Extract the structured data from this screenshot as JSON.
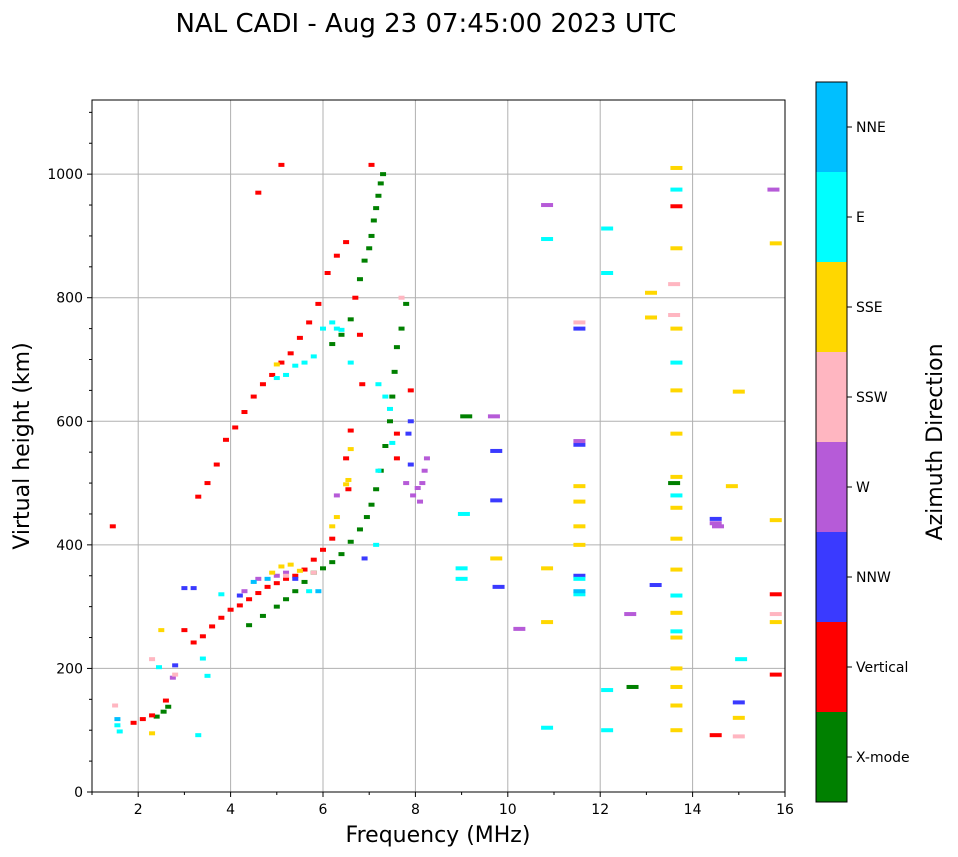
{
  "chart_data": {
    "type": "scatter",
    "title": "NAL CADI - Aug 23 07:45:00 2023 UTC",
    "xlabel": "Frequency (MHz)",
    "ylabel": "Virtual height (km)",
    "xlim": [
      1,
      16
    ],
    "ylim": [
      0,
      1120
    ],
    "x_ticks": [
      2,
      4,
      6,
      8,
      10,
      12,
      14,
      16
    ],
    "x_tick_labels": [
      "2",
      "4",
      "6",
      "8",
      "10",
      "12",
      "14",
      "16"
    ],
    "y_ticks": [
      0,
      200,
      400,
      600,
      800,
      1000
    ],
    "y_tick_labels": [
      "0",
      "200",
      "400",
      "600",
      "800",
      "1000"
    ],
    "grid": true,
    "colorbar": {
      "label": "Azimuth Direction",
      "categories": [
        "X-mode",
        "Vertical",
        "NNW",
        "W",
        "SSW",
        "SSE",
        "E",
        "NNE"
      ],
      "colors": [
        "#008000",
        "#ff0000",
        "#3a3aff",
        "#b65bd8",
        "#ffb6c1",
        "#ffd700",
        "#00ffff",
        "#00bfff"
      ]
    },
    "series": [
      {
        "name": "X-mode",
        "points": [
          [
            2.4,
            122
          ],
          [
            2.55,
            130
          ],
          [
            2.65,
            138
          ],
          [
            4.4,
            270
          ],
          [
            4.7,
            285
          ],
          [
            5.0,
            300
          ],
          [
            5.2,
            312
          ],
          [
            5.4,
            325
          ],
          [
            5.6,
            340
          ],
          [
            5.8,
            355
          ],
          [
            6.0,
            362
          ],
          [
            6.2,
            372
          ],
          [
            6.4,
            385
          ],
          [
            6.6,
            405
          ],
          [
            6.8,
            425
          ],
          [
            6.95,
            445
          ],
          [
            7.05,
            465
          ],
          [
            7.15,
            490
          ],
          [
            7.25,
            520
          ],
          [
            7.35,
            560
          ],
          [
            7.45,
            600
          ],
          [
            7.5,
            640
          ],
          [
            7.55,
            680
          ],
          [
            7.6,
            720
          ],
          [
            7.7,
            750
          ],
          [
            7.8,
            790
          ],
          [
            6.2,
            725
          ],
          [
            6.4,
            740
          ],
          [
            6.6,
            765
          ],
          [
            6.8,
            830
          ],
          [
            6.9,
            860
          ],
          [
            7.0,
            880
          ],
          [
            7.05,
            900
          ],
          [
            7.1,
            925
          ],
          [
            7.15,
            945
          ],
          [
            7.2,
            965
          ],
          [
            7.25,
            985
          ],
          [
            7.3,
            1000
          ],
          [
            9.1,
            608
          ],
          [
            12.7,
            170
          ],
          [
            13.6,
            500
          ]
        ]
      },
      {
        "name": "Vertical",
        "points": [
          [
            1.45,
            430
          ],
          [
            1.9,
            112
          ],
          [
            2.1,
            118
          ],
          [
            2.3,
            124
          ],
          [
            2.6,
            148
          ],
          [
            3.0,
            262
          ],
          [
            3.2,
            242
          ],
          [
            3.4,
            252
          ],
          [
            3.6,
            268
          ],
          [
            3.8,
            282
          ],
          [
            4.0,
            295
          ],
          [
            4.2,
            302
          ],
          [
            4.4,
            312
          ],
          [
            4.6,
            322
          ],
          [
            4.8,
            332
          ],
          [
            5.0,
            338
          ],
          [
            5.2,
            345
          ],
          [
            5.4,
            350
          ],
          [
            5.6,
            360
          ],
          [
            5.8,
            376
          ],
          [
            6.0,
            392
          ],
          [
            6.2,
            410
          ],
          [
            3.3,
            478
          ],
          [
            3.5,
            500
          ],
          [
            3.7,
            530
          ],
          [
            3.9,
            570
          ],
          [
            4.1,
            590
          ],
          [
            4.3,
            615
          ],
          [
            4.5,
            640
          ],
          [
            4.7,
            660
          ],
          [
            4.9,
            675
          ],
          [
            5.1,
            695
          ],
          [
            5.3,
            710
          ],
          [
            5.5,
            735
          ],
          [
            5.7,
            760
          ],
          [
            5.9,
            790
          ],
          [
            6.1,
            840
          ],
          [
            6.3,
            868
          ],
          [
            6.5,
            890
          ],
          [
            6.7,
            800
          ],
          [
            6.8,
            740
          ],
          [
            6.85,
            660
          ],
          [
            6.6,
            585
          ],
          [
            6.5,
            540
          ],
          [
            6.55,
            490
          ],
          [
            4.6,
            970
          ],
          [
            5.1,
            1015
          ],
          [
            7.05,
            1015
          ],
          [
            7.6,
            540
          ],
          [
            7.9,
            650
          ],
          [
            7.6,
            580
          ],
          [
            13.65,
            948
          ],
          [
            14.5,
            92
          ],
          [
            15.8,
            190
          ],
          [
            15.8,
            320
          ]
        ]
      },
      {
        "name": "NNW",
        "points": [
          [
            2.8,
            205
          ],
          [
            3.0,
            330
          ],
          [
            3.2,
            330
          ],
          [
            4.2,
            318
          ],
          [
            5.4,
            345
          ],
          [
            6.9,
            378
          ],
          [
            7.85,
            580
          ],
          [
            7.9,
            530
          ],
          [
            7.9,
            600
          ],
          [
            9.75,
            472
          ],
          [
            9.75,
            552
          ],
          [
            9.8,
            332
          ],
          [
            11.55,
            562
          ],
          [
            11.55,
            350
          ],
          [
            11.55,
            750
          ],
          [
            13.2,
            335
          ],
          [
            14.5,
            442
          ],
          [
            15.0,
            145
          ]
        ]
      },
      {
        "name": "W",
        "points": [
          [
            2.75,
            185
          ],
          [
            4.3,
            325
          ],
          [
            4.6,
            345
          ],
          [
            5.0,
            350
          ],
          [
            5.2,
            355
          ],
          [
            6.3,
            480
          ],
          [
            7.8,
            500
          ],
          [
            7.95,
            480
          ],
          [
            8.05,
            492
          ],
          [
            8.15,
            500
          ],
          [
            8.2,
            520
          ],
          [
            8.25,
            540
          ],
          [
            8.1,
            470
          ],
          [
            9.7,
            608
          ],
          [
            10.25,
            264
          ],
          [
            10.85,
            950
          ],
          [
            11.55,
            568
          ],
          [
            12.65,
            288
          ],
          [
            14.5,
            435
          ],
          [
            14.55,
            430
          ],
          [
            15.75,
            975
          ]
        ]
      },
      {
        "name": "SSW",
        "points": [
          [
            1.5,
            140
          ],
          [
            2.3,
            215
          ],
          [
            2.8,
            190
          ],
          [
            5.2,
            350
          ],
          [
            5.8,
            355
          ],
          [
            7.7,
            800
          ],
          [
            11.55,
            760
          ],
          [
            13.6,
            772
          ],
          [
            13.6,
            822
          ],
          [
            15.0,
            90
          ],
          [
            15.8,
            288
          ]
        ]
      },
      {
        "name": "SSE",
        "points": [
          [
            2.3,
            95
          ],
          [
            2.5,
            262
          ],
          [
            4.9,
            355
          ],
          [
            5.1,
            365
          ],
          [
            5.3,
            368
          ],
          [
            5.5,
            358
          ],
          [
            5.0,
            692
          ],
          [
            6.2,
            430
          ],
          [
            6.3,
            445
          ],
          [
            6.5,
            498
          ],
          [
            6.55,
            505
          ],
          [
            6.6,
            555
          ],
          [
            9.75,
            378
          ],
          [
            10.85,
            275
          ],
          [
            10.85,
            362
          ],
          [
            11.55,
            400
          ],
          [
            11.55,
            430
          ],
          [
            11.55,
            470
          ],
          [
            11.55,
            495
          ],
          [
            13.1,
            808
          ],
          [
            13.1,
            768
          ],
          [
            13.65,
            1010
          ],
          [
            13.65,
            880
          ],
          [
            13.65,
            750
          ],
          [
            13.65,
            650
          ],
          [
            13.65,
            580
          ],
          [
            13.65,
            510
          ],
          [
            13.65,
            460
          ],
          [
            13.65,
            410
          ],
          [
            13.65,
            360
          ],
          [
            13.65,
            290
          ],
          [
            13.65,
            250
          ],
          [
            13.65,
            200
          ],
          [
            13.65,
            170
          ],
          [
            13.65,
            140
          ],
          [
            13.65,
            100
          ],
          [
            14.85,
            495
          ],
          [
            15.0,
            648
          ],
          [
            15.0,
            120
          ],
          [
            15.8,
            888
          ],
          [
            15.8,
            440
          ],
          [
            15.8,
            275
          ]
        ]
      },
      {
        "name": "E",
        "points": [
          [
            1.55,
            108
          ],
          [
            1.6,
            98
          ],
          [
            2.45,
            202
          ],
          [
            3.4,
            216
          ],
          [
            3.5,
            188
          ],
          [
            3.8,
            320
          ],
          [
            3.3,
            92
          ],
          [
            5.0,
            670
          ],
          [
            5.2,
            675
          ],
          [
            5.4,
            690
          ],
          [
            5.6,
            695
          ],
          [
            5.8,
            705
          ],
          [
            6.0,
            750
          ],
          [
            6.2,
            760
          ],
          [
            6.4,
            748
          ],
          [
            5.7,
            325
          ],
          [
            6.3,
            750
          ],
          [
            6.6,
            695
          ],
          [
            7.2,
            660
          ],
          [
            7.35,
            640
          ],
          [
            7.45,
            620
          ],
          [
            7.5,
            565
          ],
          [
            7.2,
            520
          ],
          [
            7.15,
            400
          ],
          [
            9.0,
            362
          ],
          [
            9.0,
            345
          ],
          [
            9.05,
            450
          ],
          [
            10.85,
            104
          ],
          [
            10.85,
            895
          ],
          [
            11.55,
            320
          ],
          [
            11.55,
            345
          ],
          [
            12.15,
            100
          ],
          [
            12.15,
            165
          ],
          [
            12.15,
            840
          ],
          [
            12.15,
            912
          ],
          [
            13.65,
            975
          ],
          [
            13.65,
            695
          ],
          [
            13.65,
            480
          ],
          [
            13.65,
            318
          ],
          [
            13.65,
            260
          ],
          [
            15.05,
            215
          ]
        ]
      },
      {
        "name": "NNE",
        "points": [
          [
            1.55,
            118
          ],
          [
            4.5,
            340
          ],
          [
            4.8,
            345
          ],
          [
            5.9,
            325
          ],
          [
            11.55,
            325
          ]
        ]
      }
    ]
  }
}
